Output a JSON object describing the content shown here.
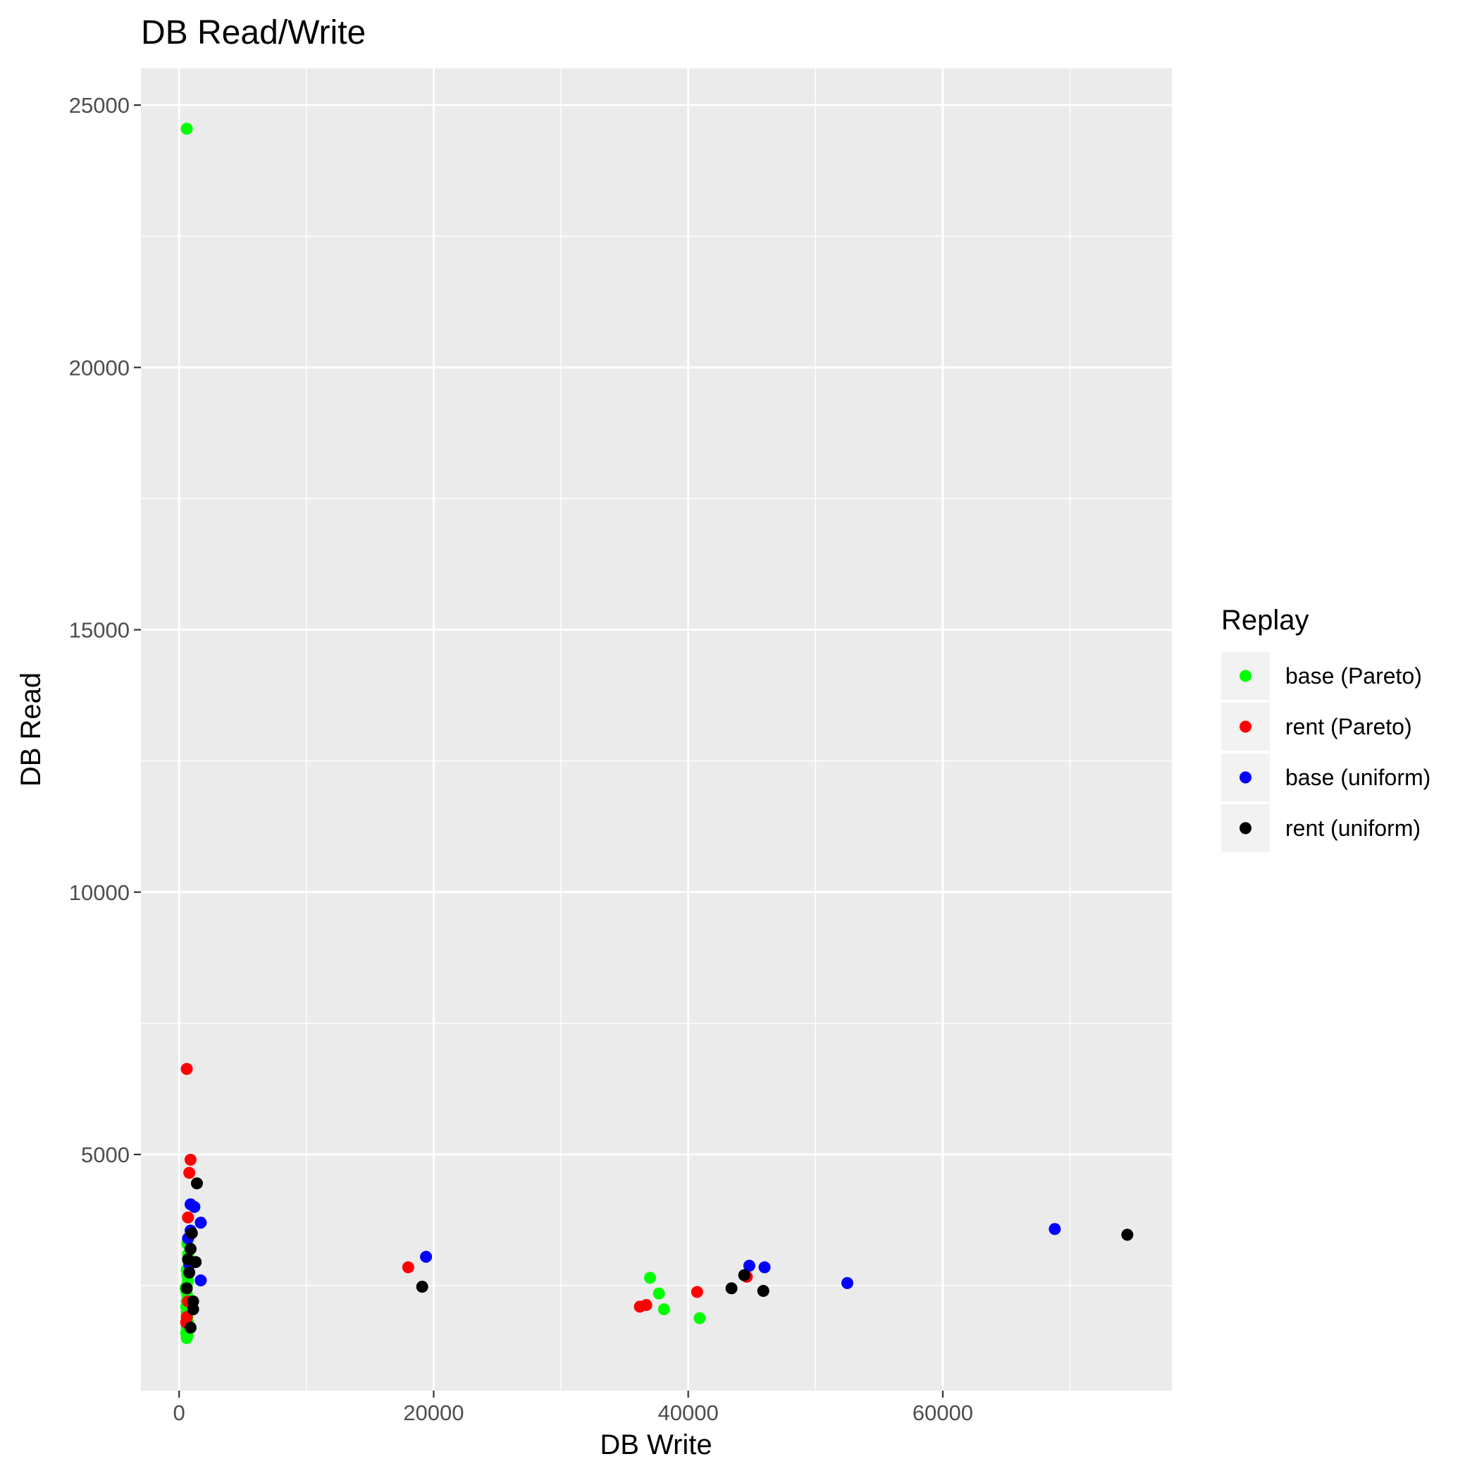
{
  "chart_data": {
    "type": "scatter",
    "title": "DB Read/Write",
    "xlabel": "DB Write",
    "ylabel": "DB Read",
    "xlim": [
      -3000,
      78000
    ],
    "ylim": [
      500,
      25700
    ],
    "x_ticks": [
      0,
      20000,
      40000,
      60000
    ],
    "y_ticks": [
      5000,
      10000,
      15000,
      20000,
      25000
    ],
    "x_tick_labels": [
      "0",
      "20000",
      "40000",
      "60000"
    ],
    "y_tick_labels": [
      "5000",
      "10000",
      "15000",
      "20000",
      "25000"
    ],
    "grid": true,
    "legend": {
      "title": "Replay",
      "position": "right"
    },
    "series": [
      {
        "name": "base (Pareto)",
        "color": "#00ff00",
        "points": [
          [
            600,
            24550
          ],
          [
            37000,
            2650
          ],
          [
            37700,
            2350
          ],
          [
            38100,
            2050
          ],
          [
            40900,
            1880
          ],
          [
            650,
            3300
          ],
          [
            700,
            3100
          ],
          [
            750,
            2950
          ],
          [
            600,
            2800
          ],
          [
            650,
            2700
          ],
          [
            700,
            2600
          ],
          [
            600,
            2500
          ],
          [
            550,
            2400
          ],
          [
            650,
            2300
          ],
          [
            600,
            2200
          ],
          [
            550,
            2100
          ],
          [
            600,
            2000
          ],
          [
            650,
            1900
          ],
          [
            700,
            1800
          ],
          [
            600,
            1700
          ],
          [
            550,
            1600
          ],
          [
            650,
            1550
          ],
          [
            600,
            1500
          ],
          [
            750,
            2750
          ],
          [
            500,
            2450
          ]
        ]
      },
      {
        "name": "rent (Pareto)",
        "color": "#ff0000",
        "points": [
          [
            600,
            6630
          ],
          [
            900,
            4900
          ],
          [
            800,
            4650
          ],
          [
            700,
            3800
          ],
          [
            18000,
            2850
          ],
          [
            36200,
            2100
          ],
          [
            36700,
            2130
          ],
          [
            40700,
            2380
          ],
          [
            44600,
            2670
          ],
          [
            600,
            1900
          ],
          [
            550,
            1800
          ],
          [
            700,
            2200
          ]
        ]
      },
      {
        "name": "base (uniform)",
        "color": "#0000ff",
        "points": [
          [
            900,
            4050
          ],
          [
            1200,
            4000
          ],
          [
            1700,
            3700
          ],
          [
            19400,
            3050
          ],
          [
            44800,
            2880
          ],
          [
            46000,
            2850
          ],
          [
            52500,
            2550
          ],
          [
            68800,
            3580
          ],
          [
            1700,
            2600
          ],
          [
            700,
            3400
          ],
          [
            900,
            3550
          ],
          [
            800,
            2900
          ]
        ]
      },
      {
        "name": "rent (uniform)",
        "color": "#000000",
        "points": [
          [
            1400,
            4450
          ],
          [
            1000,
            3500
          ],
          [
            1300,
            2950
          ],
          [
            1100,
            2200
          ],
          [
            900,
            3200
          ],
          [
            800,
            2750
          ],
          [
            1100,
            2050
          ],
          [
            900,
            1700
          ],
          [
            19100,
            2480
          ],
          [
            43400,
            2450
          ],
          [
            44400,
            2700
          ],
          [
            45900,
            2400
          ],
          [
            74500,
            3470
          ],
          [
            700,
            3000
          ],
          [
            600,
            2450
          ]
        ]
      }
    ]
  }
}
